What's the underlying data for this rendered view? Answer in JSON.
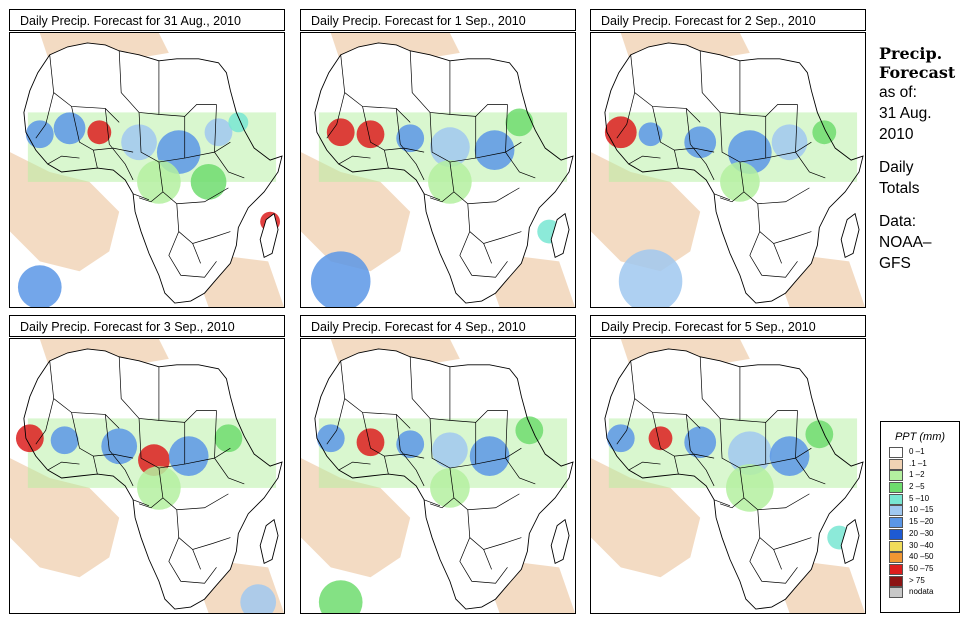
{
  "panels": [
    {
      "title": "Daily Precip. Forecast for  31 Aug., 2010"
    },
    {
      "title": "Daily Precip. Forecast for  1 Sep., 2010"
    },
    {
      "title": "Daily Precip. Forecast for  2 Sep., 2010"
    },
    {
      "title": "Daily Precip. Forecast for  3 Sep., 2010"
    },
    {
      "title": "Daily Precip. Forecast for  4 Sep., 2010"
    },
    {
      "title": "Daily Precip. Forecast for  5 Sep., 2010"
    }
  ],
  "side": {
    "heading_line1": "Precip.",
    "heading_line2": "Forecast",
    "asof_label": "as of:",
    "date_line1": "31 Aug.",
    "date_line2": "2010",
    "totals_line1": "Daily",
    "totals_line2": "Totals",
    "data_line1": "Data:",
    "data_line2": "NOAA–",
    "data_line3": "GFS"
  },
  "legend": {
    "title": "PPT (mm)",
    "entries": [
      {
        "label": "0 –1",
        "color": "#ffffff"
      },
      {
        "label": ".1 –1",
        "color": "#f0d2b4"
      },
      {
        "label": "1 –2",
        "color": "#b4f0a0"
      },
      {
        "label": "2 –5",
        "color": "#6edc6e"
      },
      {
        "label": "5 –10",
        "color": "#78e6d2"
      },
      {
        "label": "10 –15",
        "color": "#a0c8f0"
      },
      {
        "label": "15 –20",
        "color": "#5a96e6"
      },
      {
        "label": "20 –30",
        "color": "#1e5ad2"
      },
      {
        "label": "30 –40",
        "color": "#f0dc5a"
      },
      {
        "label": "40 –50",
        "color": "#f09632"
      },
      {
        "label": "50 –75",
        "color": "#dc1e1e"
      },
      {
        "label": "> 75",
        "color": "#8c1414"
      },
      {
        "label": "nodata",
        "color": "#c8c8c8"
      }
    ]
  },
  "colors": {
    "dry": "#f0d2b4",
    "light": "#b4f0a0",
    "green": "#6edc6e",
    "cyan": "#78e6d2",
    "lightblue": "#a0c8f0",
    "blue": "#5a96e6",
    "darkblue": "#1e5ad2",
    "red": "#dc1e1e",
    "orange": "#f09632"
  }
}
